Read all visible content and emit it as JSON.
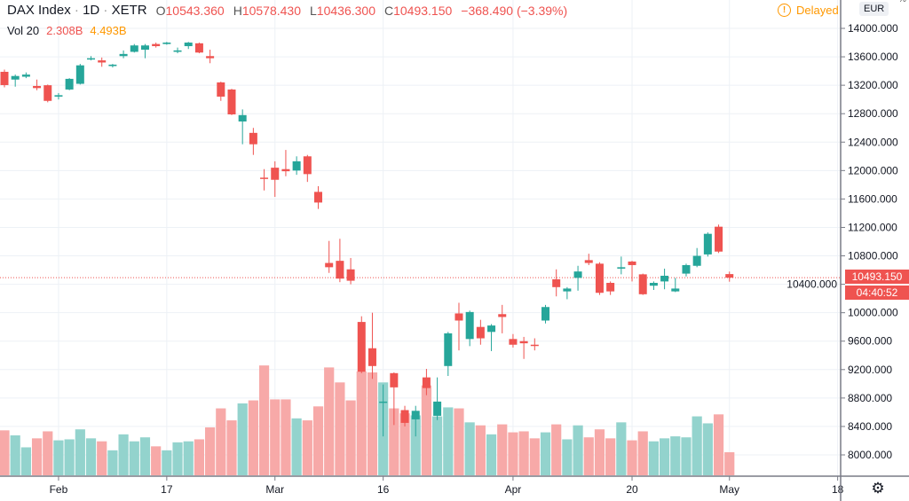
{
  "header": {
    "symbol": "DAX Index",
    "sep1": "·",
    "interval": "1D",
    "sep2": "·",
    "exchange": "XETR",
    "o_label": "O",
    "o": "10543.360",
    "h_label": "H",
    "h": "10578.430",
    "l_label": "L",
    "l": "10436.300",
    "c_label": "C",
    "c": "10493.150",
    "change": "−368.490 (−3.39%)",
    "status": "Delayed",
    "status_icon": "exclamation-circle-icon"
  },
  "volume_legend": {
    "label": "Vol 20",
    "value": "2.308B",
    "ma": "4.493B"
  },
  "price_axis": {
    "currency": "EUR",
    "percent_sign": "%",
    "ticks": [
      "14000.000",
      "13600.000",
      "13200.000",
      "12800.000",
      "12400.000",
      "12000.000",
      "11600.000",
      "11200.000",
      "10800.000",
      "10400.000",
      "10000.000",
      "9600.000",
      "9200.000",
      "8800.000",
      "8400.000",
      "8000.000"
    ],
    "last_price": "10493.150",
    "countdown": "04:40:52"
  },
  "time_axis": {
    "ticks": [
      {
        "label": "Feb",
        "bar": 5
      },
      {
        "label": "17",
        "bar": 15
      },
      {
        "label": "Mar",
        "bar": 25
      },
      {
        "label": "16",
        "bar": 35
      },
      {
        "label": "Apr",
        "bar": 47
      },
      {
        "label": "20",
        "bar": 58
      },
      {
        "label": "May",
        "bar": 67
      },
      {
        "label": "18",
        "bar": 77
      }
    ],
    "settings_icon": "gear-icon"
  },
  "colors": {
    "up": "#26a69a",
    "down": "#ef5350",
    "up_vol": "#93d3cd",
    "down_vol": "#f7a9a8",
    "grid": "#edf1f6",
    "ma": "#ff9800"
  },
  "chart_data": {
    "type": "candlestick",
    "ylim": [
      7700,
      14250
    ],
    "price_ticks": [
      14000,
      13600,
      13200,
      12800,
      12400,
      12000,
      11600,
      11200,
      10800,
      10400,
      10000,
      9600,
      9200,
      8800,
      8400,
      8000
    ],
    "last_price": 10493.15,
    "ohlc": [
      [
        13389,
        13420,
        13170,
        13202
      ],
      [
        13280,
        13350,
        13180,
        13330
      ],
      [
        13320,
        13380,
        13300,
        13350
      ],
      [
        13190,
        13280,
        13130,
        13160
      ],
      [
        13200,
        13210,
        12960,
        12980
      ],
      [
        13040,
        13090,
        13000,
        13060
      ],
      [
        13140,
        13300,
        13130,
        13290
      ],
      [
        13220,
        13500,
        13210,
        13480
      ],
      [
        13570,
        13610,
        13550,
        13580
      ],
      [
        13550,
        13590,
        13460,
        13520
      ],
      [
        13470,
        13500,
        13450,
        13490
      ],
      [
        13610,
        13690,
        13580,
        13640
      ],
      [
        13670,
        13780,
        13660,
        13760
      ],
      [
        13700,
        13780,
        13580,
        13760
      ],
      [
        13780,
        13800,
        13730,
        13750
      ],
      [
        13780,
        13810,
        13770,
        13800
      ],
      [
        13670,
        13730,
        13650,
        13690
      ],
      [
        13750,
        13810,
        13710,
        13800
      ],
      [
        13790,
        13800,
        13650,
        13660
      ],
      [
        13610,
        13700,
        13510,
        13580
      ],
      [
        13240,
        13250,
        12980,
        13040
      ],
      [
        13140,
        13150,
        12780,
        12790
      ],
      [
        12690,
        12860,
        12370,
        12780
      ],
      [
        12530,
        12600,
        12220,
        12370
      ],
      [
        11900,
        12020,
        11720,
        11890
      ],
      [
        12040,
        12130,
        11630,
        11870
      ],
      [
        12020,
        12290,
        11920,
        11990
      ],
      [
        12000,
        12200,
        11940,
        12130
      ],
      [
        12200,
        12220,
        11840,
        11950
      ],
      [
        11700,
        11780,
        11460,
        11550
      ],
      [
        10700,
        11010,
        10560,
        10640
      ],
      [
        10730,
        11040,
        10430,
        10480
      ],
      [
        10610,
        10770,
        10400,
        10450
      ],
      [
        9870,
        9950,
        9150,
        9170
      ],
      [
        9500,
        10000,
        9070,
        9250
      ],
      [
        8740,
        8990,
        8260,
        8750
      ],
      [
        9150,
        9160,
        8420,
        8950
      ],
      [
        8630,
        8690,
        8400,
        8450
      ],
      [
        8500,
        8690,
        8260,
        8620
      ],
      [
        9090,
        9210,
        8840,
        8940
      ],
      [
        8550,
        9090,
        8490,
        8750
      ],
      [
        9250,
        9730,
        9110,
        9710
      ],
      [
        9990,
        10140,
        9470,
        9890
      ],
      [
        9630,
        10030,
        9530,
        10010
      ],
      [
        9800,
        9900,
        9550,
        9640
      ],
      [
        9730,
        9840,
        9460,
        9820
      ],
      [
        9980,
        10110,
        9710,
        9940
      ],
      [
        9630,
        9700,
        9510,
        9550
      ],
      [
        9600,
        9660,
        9350,
        9570
      ],
      [
        9550,
        9640,
        9470,
        9540
      ],
      [
        9890,
        10110,
        9850,
        10080
      ],
      [
        10470,
        10610,
        10230,
        10360
      ],
      [
        10300,
        10360,
        10190,
        10340
      ],
      [
        10490,
        10660,
        10310,
        10580
      ],
      [
        10740,
        10830,
        10670,
        10700
      ],
      [
        10690,
        10710,
        10250,
        10280
      ],
      [
        10420,
        10440,
        10250,
        10300
      ],
      [
        10620,
        10790,
        10540,
        10640
      ],
      [
        10720,
        10730,
        10440,
        10670
      ],
      [
        10540,
        10550,
        10250,
        10260
      ],
      [
        10380,
        10440,
        10320,
        10420
      ],
      [
        10440,
        10620,
        10330,
        10520
      ],
      [
        10300,
        10490,
        10290,
        10340
      ],
      [
        10550,
        10690,
        10510,
        10670
      ],
      [
        10660,
        10910,
        10640,
        10800
      ],
      [
        10820,
        11130,
        10790,
        11110
      ],
      [
        11210,
        11240,
        10840,
        10860
      ],
      [
        10543.36,
        10578.43,
        10436.3,
        10493.15
      ]
    ],
    "volume_billions": [
      4.5,
      4.0,
      2.8,
      3.7,
      4.4,
      3.5,
      3.6,
      4.6,
      3.7,
      3.4,
      2.5,
      4.1,
      3.4,
      3.8,
      2.9,
      2.5,
      3.3,
      3.4,
      3.6,
      4.8,
      6.7,
      5.5,
      7.2,
      7.5,
      11.0,
      7.6,
      7.6,
      5.7,
      5.5,
      6.9,
      10.8,
      9.3,
      7.5,
      10.4,
      10.3,
      9.3,
      6.7,
      6.2,
      6.0,
      9.0,
      5.9,
      6.8,
      6.7,
      5.3,
      5.0,
      4.1,
      5.1,
      4.3,
      4.4,
      3.7,
      4.3,
      5.1,
      3.6,
      5.0,
      3.8,
      4.6,
      3.7,
      5.3,
      3.5,
      4.4,
      3.4,
      3.7,
      3.9,
      3.8,
      5.9,
      5.2,
      6.1,
      2.308
    ]
  }
}
